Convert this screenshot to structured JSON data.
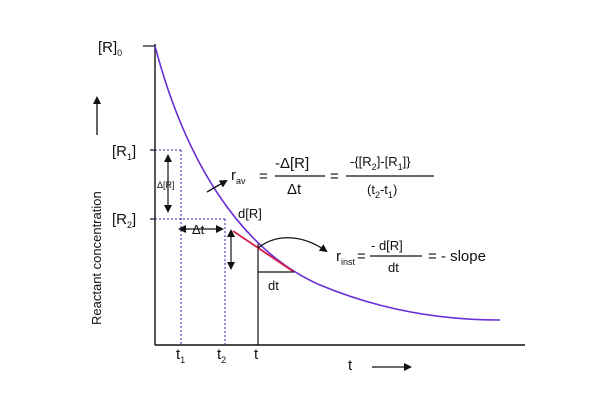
{
  "axes": {
    "y_label": "Reactant concentration",
    "x_label": "t",
    "y_ticks": {
      "r0": "[R]",
      "r0_sub": "0",
      "r1": "[R",
      "r1_sub": "1",
      "r1_close": "]",
      "r2": "[R",
      "r2_sub": "2",
      "r2_close": "]"
    },
    "x_ticks": {
      "t1": "t",
      "t1_sub": "1",
      "t2": "t",
      "t2_sub": "2",
      "t": "t"
    }
  },
  "annotations": {
    "delta_r": "Δ[R]",
    "delta_t": "Δt",
    "d_r": "d[R]",
    "dt": "dt"
  },
  "equations": {
    "avg": {
      "lhs": "r",
      "lhs_sub": "av",
      "eq1": "=",
      "num1": "-Δ[R]",
      "den1": "Δt",
      "eq2": "=",
      "num2_a": "-{[R",
      "num2_sub_a": "2",
      "num2_b": "]-[R",
      "num2_sub_b": "1",
      "num2_c": "]}",
      "den2_a": "(t",
      "den2_sub_a": "2",
      "den2_b": "-t",
      "den2_sub_b": "1",
      "den2_c": ")"
    },
    "inst": {
      "lhs": "r",
      "lhs_sub": "inst",
      "eq1": "=",
      "num": "- d[R]",
      "den": "dt",
      "eq2": "= - slope"
    }
  },
  "colors": {
    "curve": "#6a2fd6",
    "tangent": "#d6204a",
    "guide": "#2a2aa8",
    "axis": "#111111"
  }
}
